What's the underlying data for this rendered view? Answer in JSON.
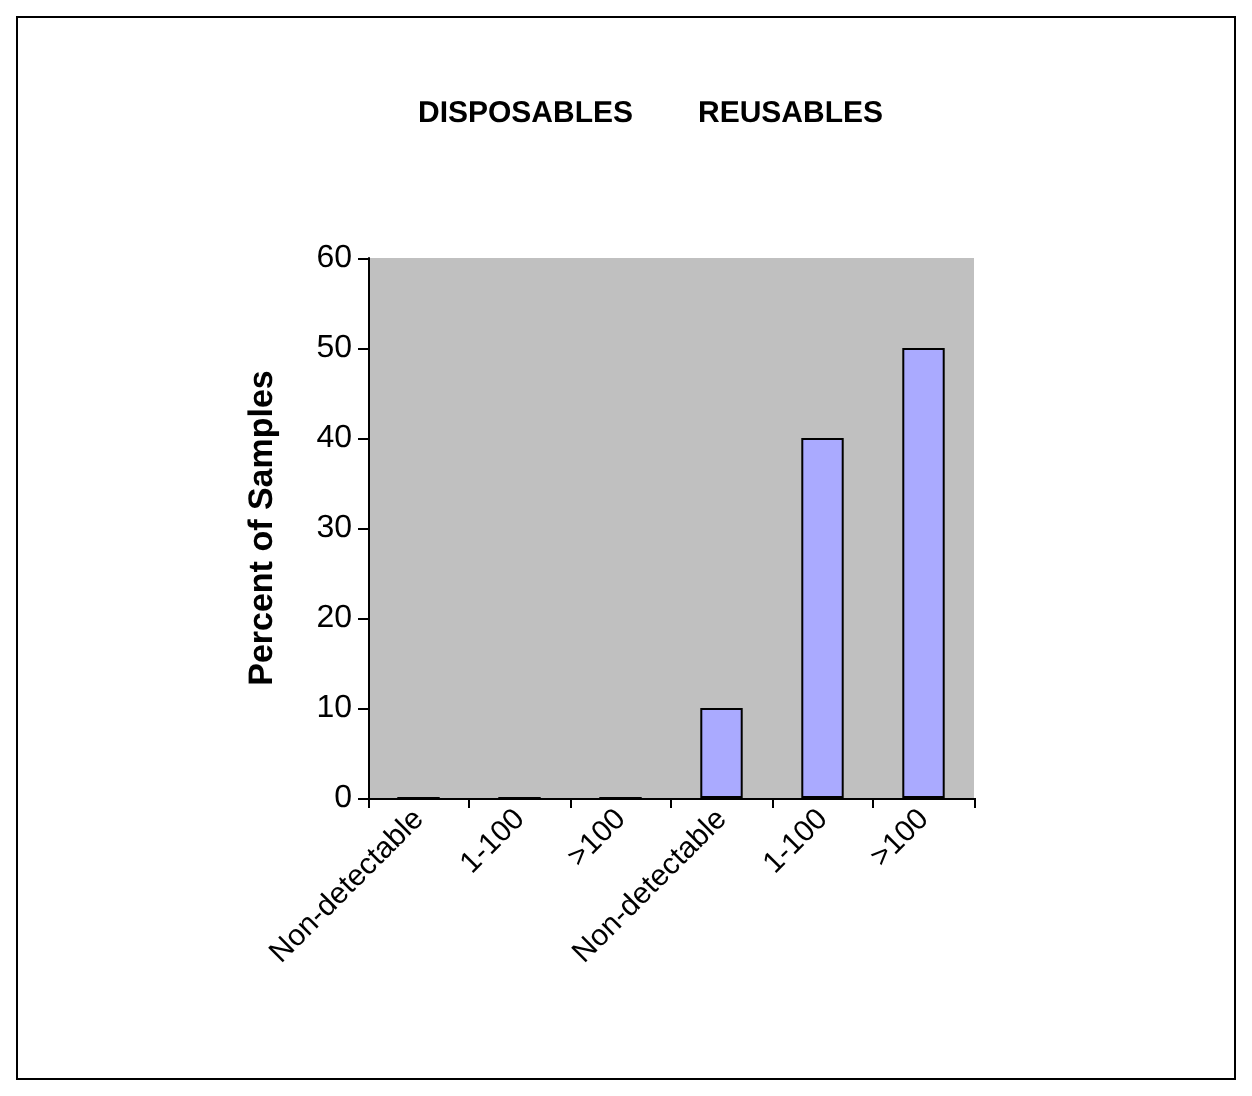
{
  "chart_data": {
    "type": "bar",
    "ylabel": "Percent of Samples",
    "annotations": [
      "DISPOSABLES",
      "REUSABLES"
    ],
    "categories": [
      "Non-detectable",
      "1-100",
      ">100",
      "Non-detectable",
      "1-100",
      ">100"
    ],
    "values": [
      0,
      0,
      0,
      10,
      40,
      50
    ],
    "color": "#aaaaff",
    "ylim": [
      0,
      60
    ],
    "yticks": [
      0,
      10,
      20,
      30,
      40,
      50,
      60
    ],
    "grid": false
  }
}
